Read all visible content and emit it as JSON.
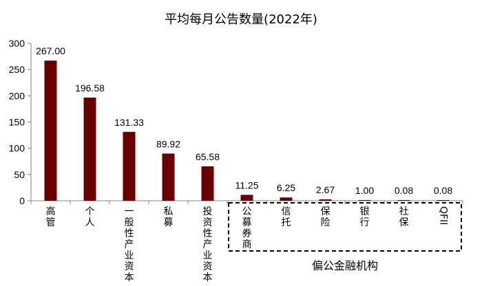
{
  "chart_data": {
    "type": "bar",
    "title": "平均每月公告数量(2022年)",
    "categories": [
      "高管",
      "个人",
      "一般性产业资本",
      "私募",
      "投资性产业资本",
      "公募券商",
      "信托",
      "保险",
      "银行",
      "社保",
      "QFII"
    ],
    "values": [
      267.0,
      196.58,
      131.33,
      89.92,
      65.58,
      11.25,
      6.25,
      2.67,
      1.0,
      0.08,
      0.08
    ],
    "data_labels": [
      "267.00",
      "196.58",
      "131.33",
      "89.92",
      "65.58",
      "11.25",
      "6.25",
      "2.67",
      "1.00",
      "0.08",
      "0.08"
    ],
    "ylim": [
      0,
      300
    ],
    "yticks": [
      0,
      50,
      100,
      150,
      200,
      250,
      300
    ],
    "xlabel": "",
    "ylabel": "",
    "bar_color": "#6b0000",
    "grid": false,
    "group": {
      "label": "偏公金融机构",
      "start_index": 5,
      "end_index": 10
    }
  }
}
